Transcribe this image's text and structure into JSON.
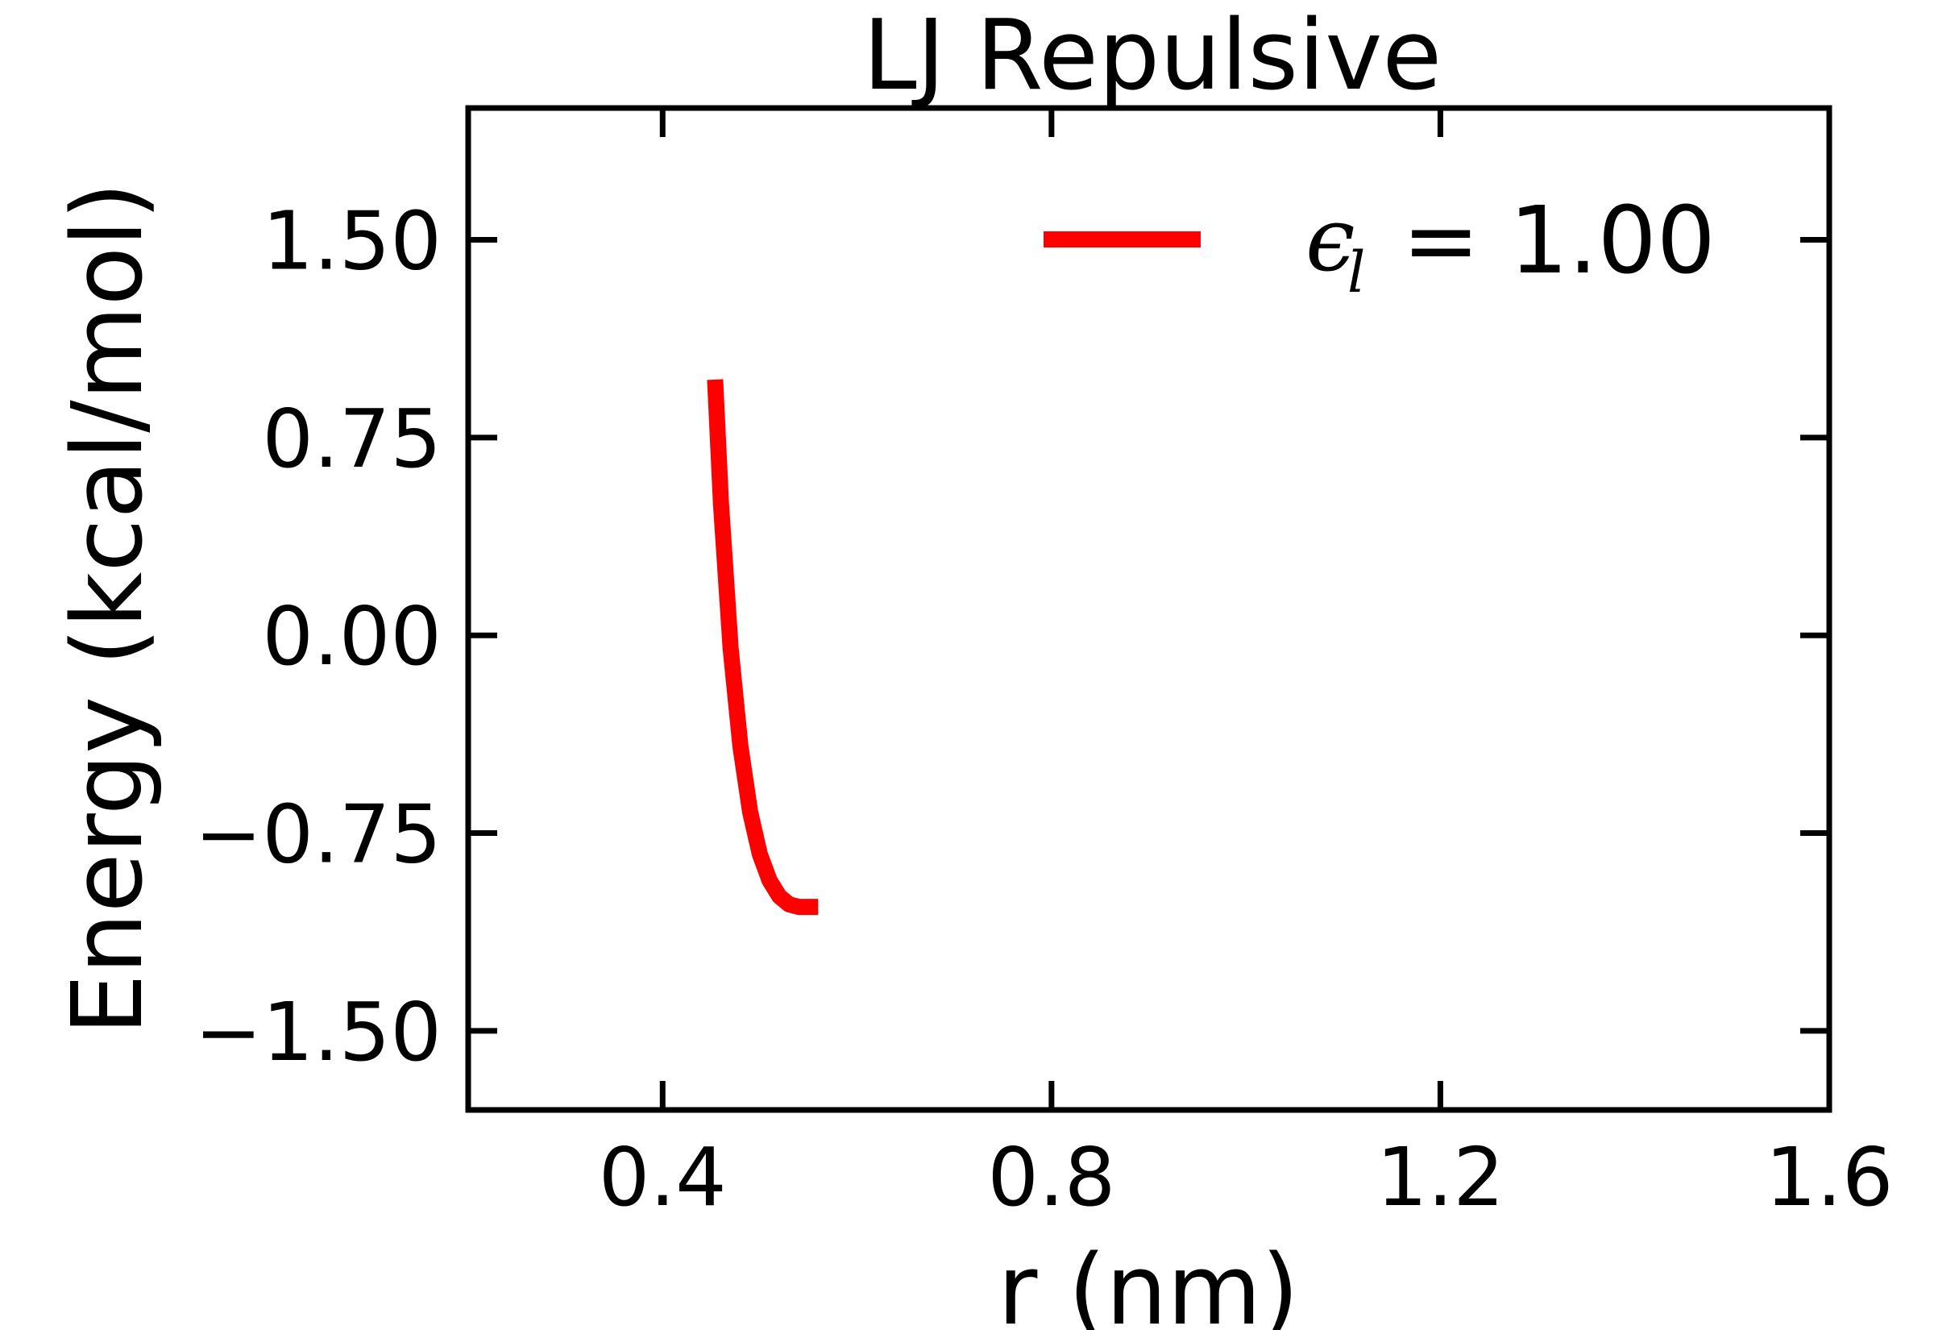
{
  "chart_data": {
    "type": "line",
    "title": "LJ Repulsive",
    "xlabel": "r (nm)",
    "ylabel": "Energy (kcal/mol)",
    "xlim": [
      0.2,
      1.6
    ],
    "ylim": [
      -1.8,
      2.0
    ],
    "x_ticks": [
      0.4,
      0.8,
      1.2,
      1.6
    ],
    "x_tick_labels": [
      "0.4",
      "0.8",
      "1.2",
      "1.6"
    ],
    "y_ticks": [
      -1.5,
      -0.75,
      0.0,
      0.75,
      1.5
    ],
    "y_tick_labels": [
      "−1.50",
      "−0.75",
      "0.00",
      "0.75",
      "1.50"
    ],
    "grid": false,
    "legend_position": "top-right",
    "legend": {
      "symbol": "ϵ",
      "subscript": "l",
      "value_text": "= 1.00"
    },
    "series": [
      {
        "name": "ϵ_l = 1.00",
        "color": "#ff0000",
        "x": [
          0.454,
          0.46,
          0.47,
          0.48,
          0.49,
          0.5,
          0.51,
          0.52,
          0.53,
          0.54,
          0.55,
          0.56
        ],
        "y": [
          0.97,
          0.5,
          -0.05,
          -0.42,
          -0.67,
          -0.83,
          -0.93,
          -0.99,
          -1.02,
          -1.03,
          -1.03,
          -1.03
        ]
      }
    ]
  }
}
